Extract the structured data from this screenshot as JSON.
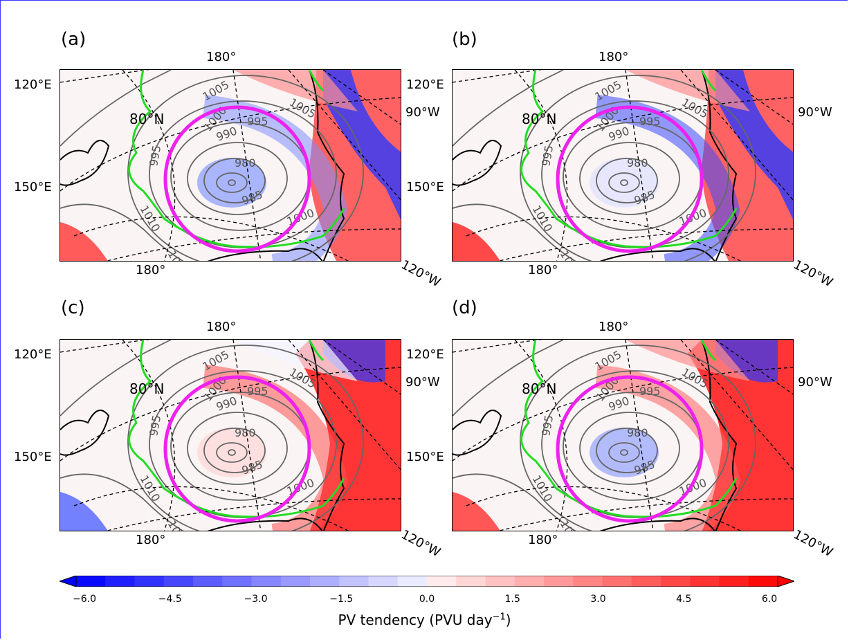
{
  "panels": [
    {
      "label": "(a)",
      "variant": "a"
    },
    {
      "label": "(b)",
      "variant": "b"
    },
    {
      "label": "(c)",
      "variant": "c"
    },
    {
      "label": "(d)",
      "variant": "d"
    }
  ],
  "geo_labels": {
    "lon_180_top": "180°",
    "lon_180_bottom": "180°",
    "lon_120e": "120°E",
    "lon_150e": "150°E",
    "lon_90w": "90°W",
    "lon_120w": "120°W",
    "lat_80n": "80°N"
  },
  "isobar_labels": [
    "1005",
    "1005",
    "1000",
    "995",
    "990",
    "980",
    "995",
    "985",
    "1010",
    "1000",
    "1010"
  ],
  "colorbar": {
    "ticks": [
      "−6.0",
      "−4.5",
      "−3.0",
      "−1.5",
      "0.0",
      "1.5",
      "3.0",
      "4.5",
      "6.0"
    ],
    "label_main": "PV tendency (PVU day",
    "label_sup": "−1",
    "label_end": ")",
    "min": -6.0,
    "max": 6.0,
    "negative_color": "#0000ff",
    "positive_color": "#ff0000"
  },
  "colors": {
    "ring": "#ee22ee",
    "sea_ice_edge": "#22dd22",
    "isobar": "#666666",
    "coast": "#000000"
  }
}
